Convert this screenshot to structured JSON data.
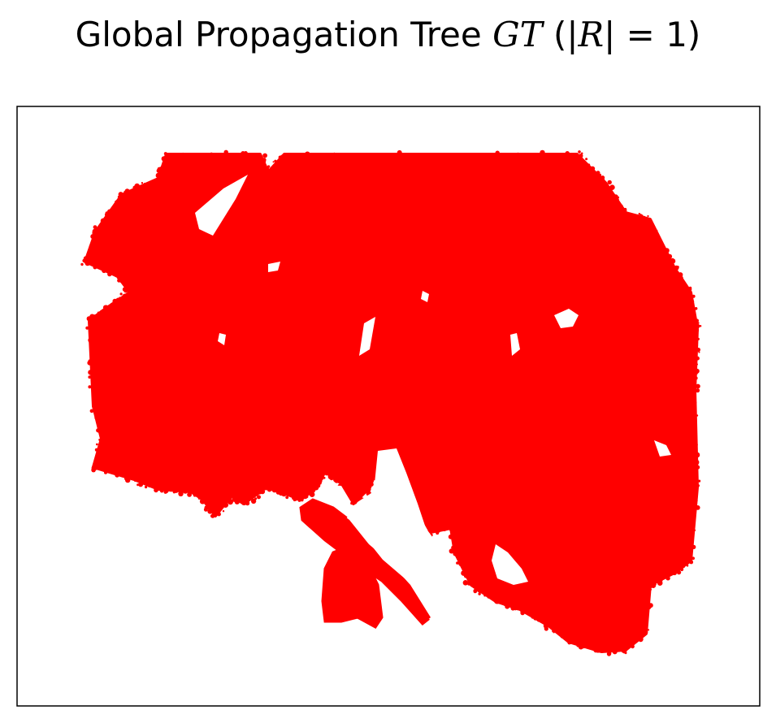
{
  "chart_data": {
    "type": "scatter",
    "title": {
      "prefix": "Global Propagation Tree ",
      "symbol": "GT",
      "open": " (|",
      "var": "R",
      "close": "| =  1)"
    },
    "xlabel": "",
    "ylabel": "",
    "ticks": "none",
    "grid": false,
    "legend": "none",
    "colors": {
      "tree": "#ff0000",
      "frame": "#000000"
    },
    "series": [
      {
        "marker": "dense-points",
        "color": "#ff0000"
      }
    ]
  }
}
